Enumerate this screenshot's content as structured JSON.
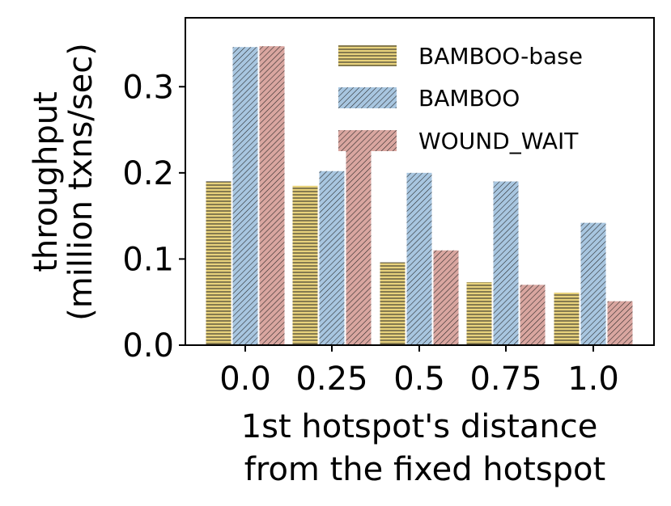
{
  "chart_data": {
    "type": "bar",
    "categories": [
      "0.0",
      "0.25",
      "0.5",
      "0.75",
      "1.0"
    ],
    "series": [
      {
        "name": "BAMBOO-base",
        "values": [
          0.19,
          0.185,
          0.096,
          0.073,
          0.061
        ],
        "color": "#e8d27c",
        "hatch": "horizontal"
      },
      {
        "name": "BAMBOO",
        "values": [
          0.346,
          0.202,
          0.2,
          0.19,
          0.142
        ],
        "color": "#a8c6e0",
        "hatch": "diagonal"
      },
      {
        "name": "WOUND_WAIT",
        "values": [
          0.347,
          0.242,
          0.11,
          0.07,
          0.051
        ],
        "color": "#d9a6a0",
        "hatch": "diagonal"
      }
    ],
    "ylim": [
      0,
      0.38
    ],
    "yticks": [
      "0.0",
      "0.1",
      "0.2",
      "0.3"
    ],
    "xlabel": [
      "1st hotspot's distance",
      "from the fixed hotspot"
    ],
    "ylabel": [
      "throughput",
      "(million txns/sec)"
    ],
    "legend_position": "top-right",
    "grid": false
  }
}
